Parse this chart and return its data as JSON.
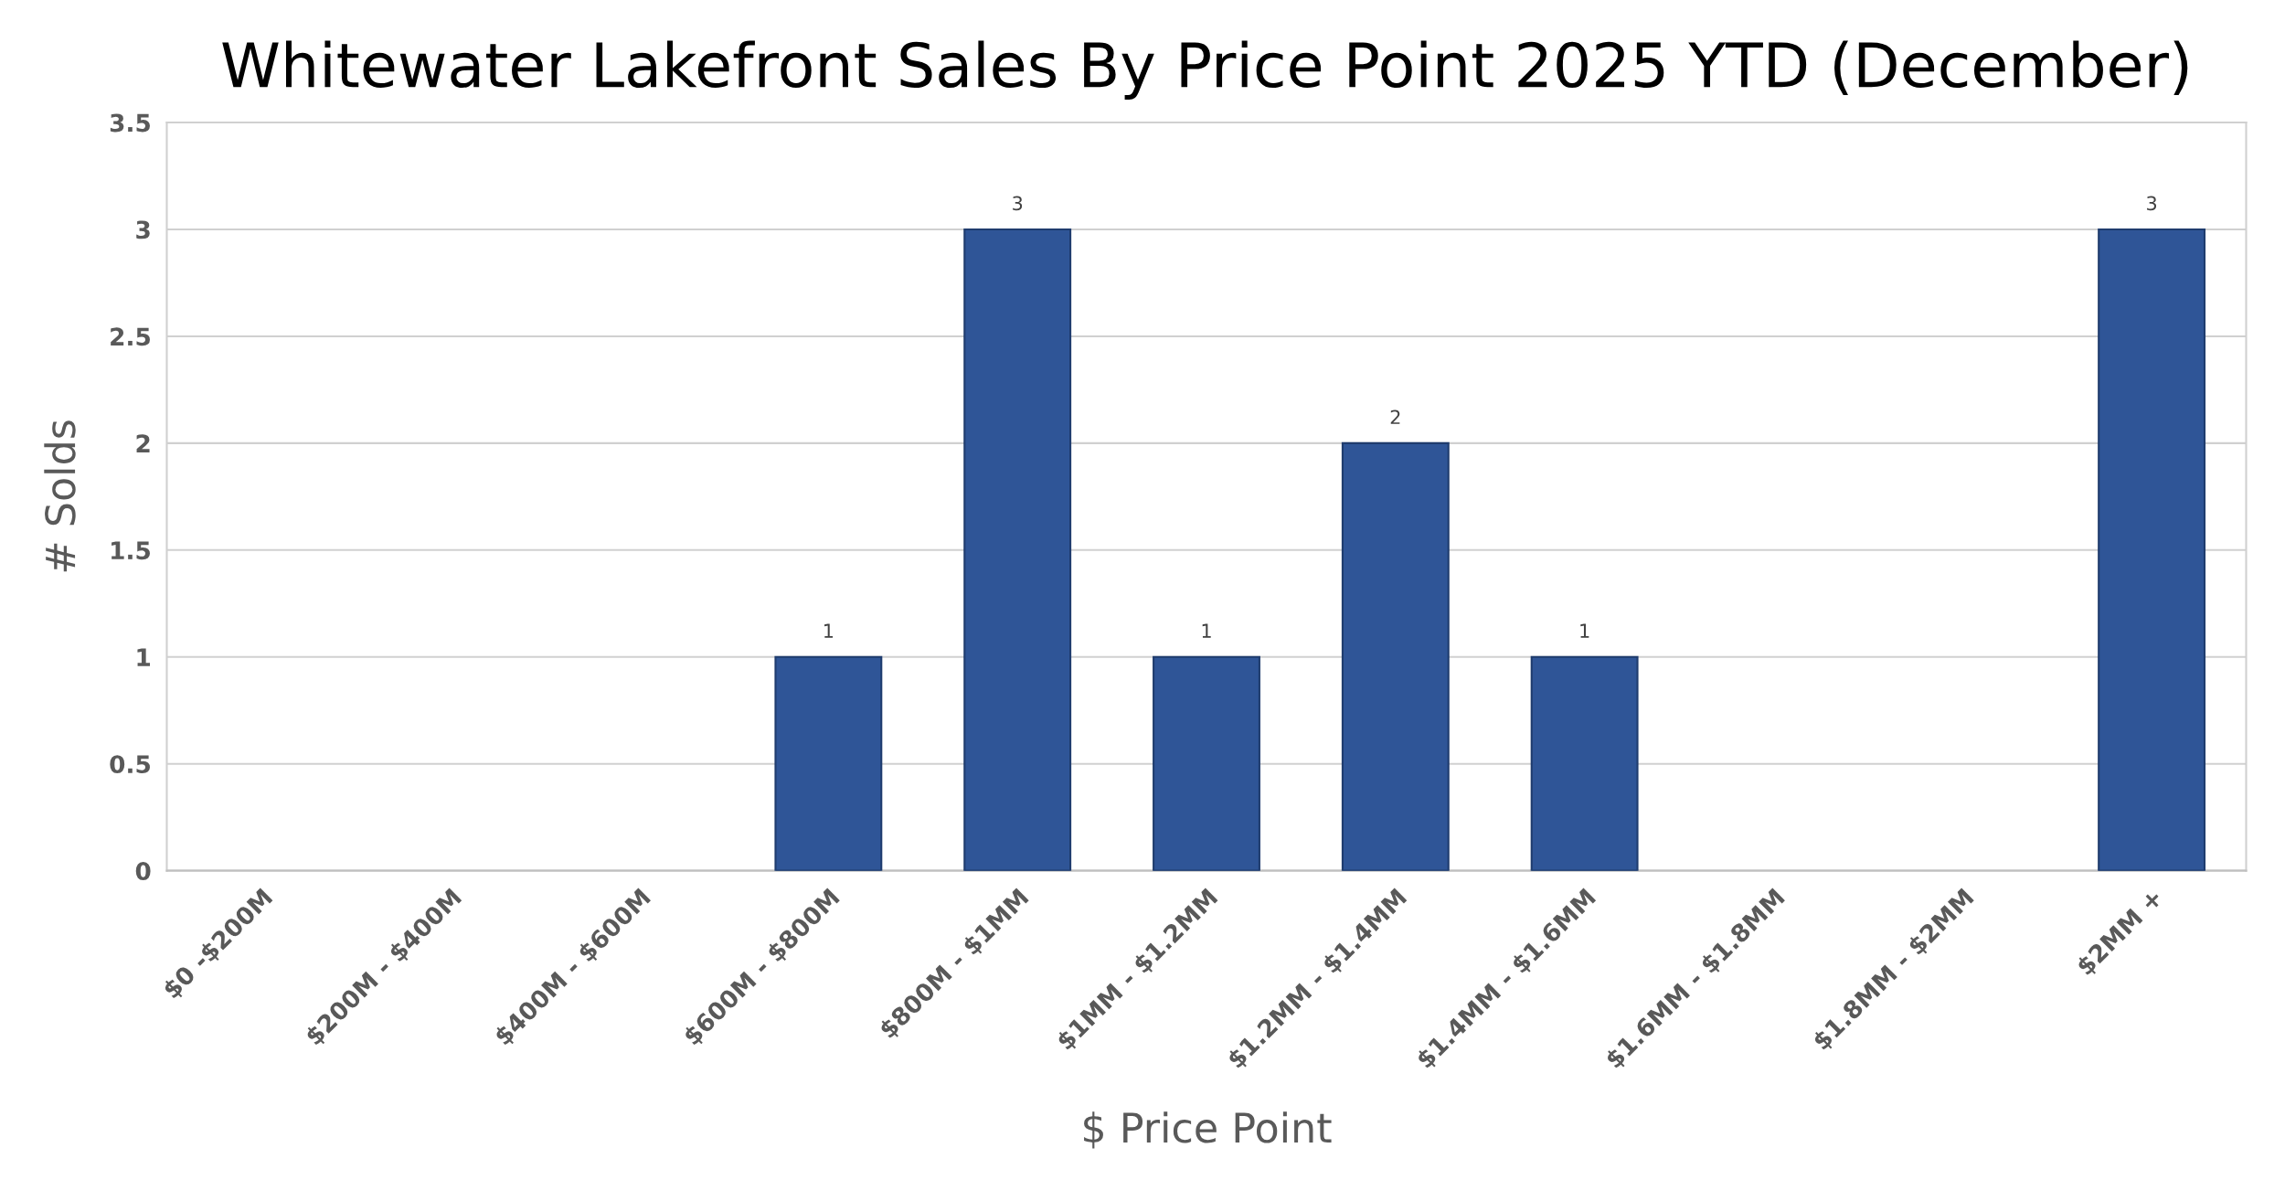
{
  "chart_data": {
    "type": "bar",
    "title": "Whitewater Lakefront Sales By Price Point 2025 YTD (December)",
    "xlabel": "$ Price Point",
    "ylabel": "# Solds",
    "categories": [
      "$0 -$200M",
      "$200M - $400M",
      "$400M - $600M",
      "$600M - $800M",
      "$800M - $1MM",
      "$1MM - $1.2MM",
      "$1.2MM - $1.4MM",
      "$1.4MM - $1.6MM",
      "$1.6MM - $1.8MM",
      "$1.8MM - $2MM",
      "$2MM +"
    ],
    "values": [
      0,
      0,
      0,
      1,
      3,
      1,
      2,
      1,
      0,
      0,
      3
    ],
    "value_labels": [
      null,
      null,
      null,
      "1",
      "3",
      "1",
      "2",
      "1",
      null,
      null,
      "3"
    ],
    "color": "#2f5597",
    "ylim": [
      0,
      3.5
    ],
    "yticks": [
      0,
      0.5,
      1,
      1.5,
      2,
      2.5,
      3,
      3.5
    ],
    "grid": "y",
    "legend": false
  }
}
